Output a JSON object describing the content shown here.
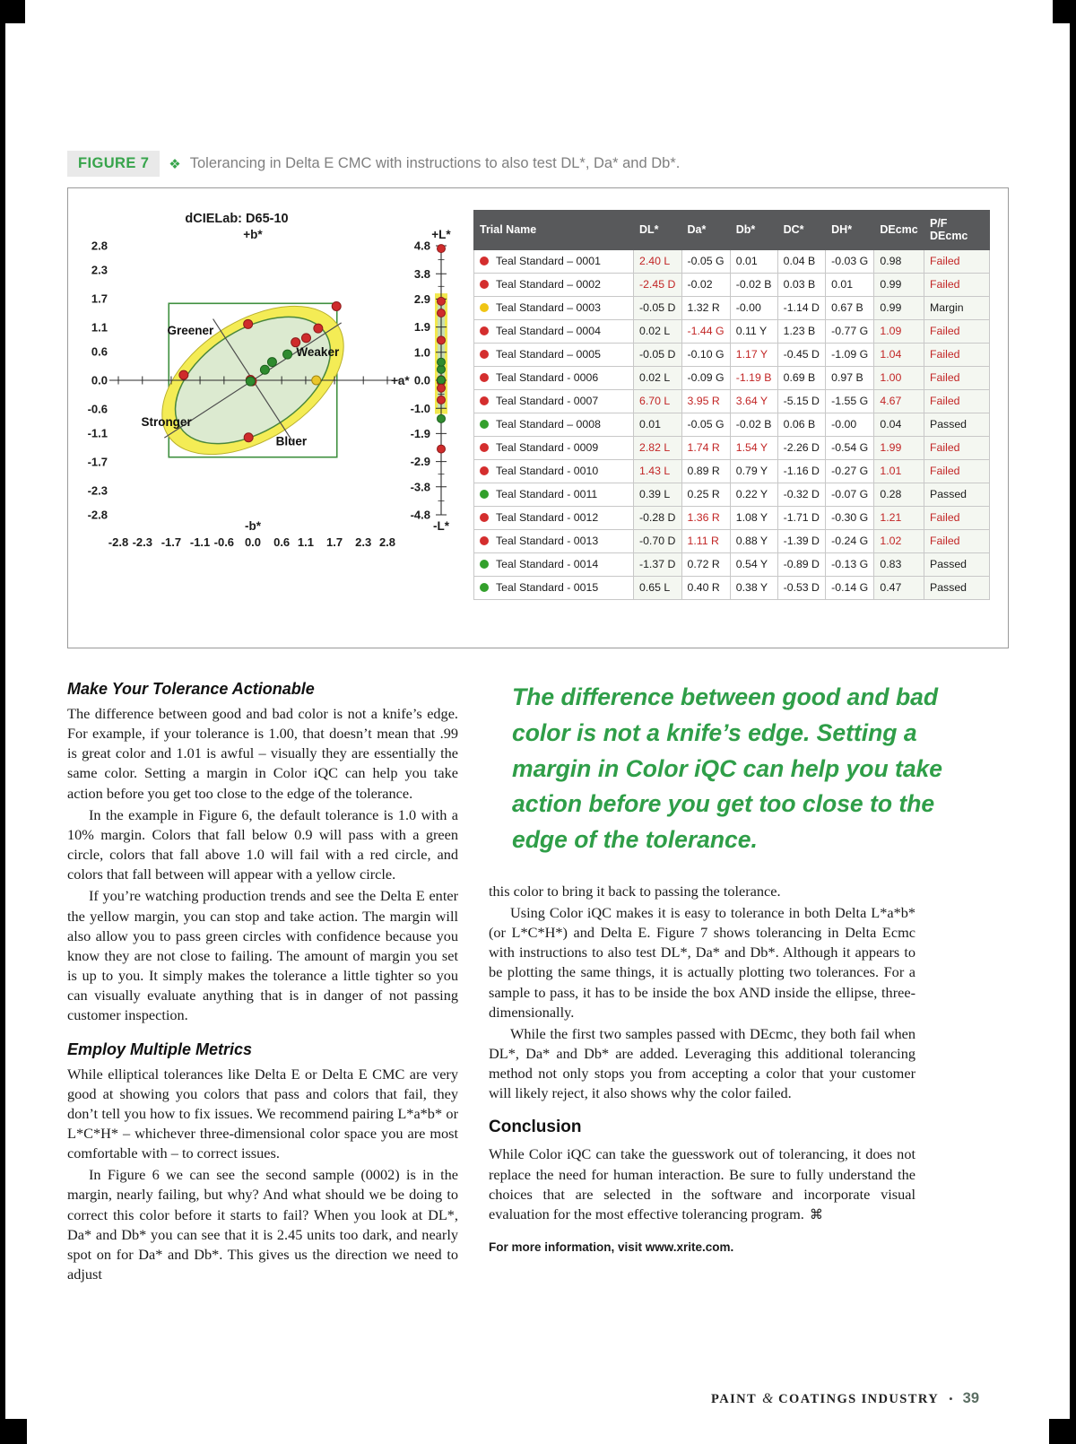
{
  "colors": {
    "accent_green": "#2f9e48",
    "fail_red": "#c22525",
    "pass_green": "#33a02c",
    "margin_yellow": "#f0c514",
    "table_header_gray": "#58595b"
  },
  "figure": {
    "label": "FIGURE 7",
    "icon": "❖",
    "title": "Tolerancing in Delta E CMC with instructions to also test DL*, Da* and Db*."
  },
  "chart_data": {
    "type": "scatter",
    "title": "dCIELab: D65-10",
    "ab_plot": {
      "range": [
        -2.8,
        2.8
      ],
      "ticks": [
        -2.8,
        -2.3,
        -1.7,
        -1.1,
        -0.6,
        0.0,
        0.6,
        1.1,
        1.7,
        2.3,
        2.8
      ],
      "tick_labels": [
        "-2.8",
        "-2.3",
        "-1.7",
        "-1.1",
        "-0.6",
        "0.0",
        "0.6",
        "1.1",
        "1.7",
        "2.3",
        "2.8"
      ],
      "top_label": "+b*",
      "bottom_label": "-b*",
      "right_label": "+a*",
      "tolerance_box": {
        "a_min": -1.75,
        "a_max": 1.75,
        "b_min": -1.6,
        "b_max": 1.6
      },
      "ellipse": {
        "cx": 0,
        "cy": 0,
        "rx": 1.8,
        "ry": 1.05,
        "angle_deg": -33,
        "margin_scale": 1.17
      },
      "annotations": [
        {
          "text": "Greener",
          "a": -1.3,
          "b": 0.95
        },
        {
          "text": "Weaker",
          "a": 1.35,
          "b": 0.5
        },
        {
          "text": "Stronger",
          "a": -1.8,
          "b": -0.95
        },
        {
          "text": "Bluer",
          "a": 0.8,
          "b": -1.35
        }
      ],
      "points": [
        {
          "a": -0.05,
          "b": 0.01,
          "c": "red"
        },
        {
          "a": -0.02,
          "b": -0.02,
          "c": "red"
        },
        {
          "a": 1.32,
          "b": 0.0,
          "c": "yellow"
        },
        {
          "a": -1.44,
          "b": 0.11,
          "c": "red"
        },
        {
          "a": -0.1,
          "b": 1.17,
          "c": "red"
        },
        {
          "a": -0.09,
          "b": -1.19,
          "c": "red"
        },
        {
          "a": 3.95,
          "b": 3.64,
          "c": "red"
        },
        {
          "a": -0.05,
          "b": -0.02,
          "c": "green"
        },
        {
          "a": 1.74,
          "b": 1.54,
          "c": "red"
        },
        {
          "a": 0.89,
          "b": 0.79,
          "c": "red"
        },
        {
          "a": 0.25,
          "b": 0.22,
          "c": "green"
        },
        {
          "a": 1.36,
          "b": 1.08,
          "c": "red"
        },
        {
          "a": 1.11,
          "b": 0.88,
          "c": "red"
        },
        {
          "a": 0.72,
          "b": 0.54,
          "c": "green"
        },
        {
          "a": 0.4,
          "b": 0.38,
          "c": "green"
        }
      ]
    },
    "l_scale": {
      "range": [
        -4.8,
        4.8
      ],
      "ticks": [
        4.8,
        3.8,
        2.9,
        1.9,
        1.0,
        0.0,
        -1.0,
        -1.9,
        -2.9,
        -3.8,
        -4.8
      ],
      "tick_labels": [
        "4.8",
        "3.8",
        "2.9",
        "1.9",
        "1.0",
        "0.0",
        "-1.0",
        "-1.9",
        "-2.9",
        "-3.8",
        "-4.8"
      ],
      "top_label": "+L*",
      "bottom_label": "-L*",
      "margin_band": [
        -1.2,
        3.1
      ],
      "pass_band": [
        -1.0,
        2.8
      ],
      "points": [
        {
          "l": 2.4,
          "c": "red"
        },
        {
          "l": -2.45,
          "c": "red"
        },
        {
          "l": -0.05,
          "c": "yellow"
        },
        {
          "l": 0.02,
          "c": "red"
        },
        {
          "l": -0.05,
          "c": "red"
        },
        {
          "l": 0.02,
          "c": "red"
        },
        {
          "l": 6.7,
          "c": "red"
        },
        {
          "l": 0.01,
          "c": "green"
        },
        {
          "l": 2.82,
          "c": "red"
        },
        {
          "l": 1.43,
          "c": "red"
        },
        {
          "l": 0.39,
          "c": "green"
        },
        {
          "l": -0.28,
          "c": "red"
        },
        {
          "l": -0.7,
          "c": "red"
        },
        {
          "l": -1.37,
          "c": "green"
        },
        {
          "l": 0.65,
          "c": "green"
        }
      ]
    }
  },
  "table": {
    "headers": [
      "Trial Name",
      "DL*",
      "Da*",
      "Db*",
      "DC*",
      "DH*",
      "DEcmc",
      "P/F DEcmc"
    ],
    "rows": [
      {
        "dot": "red",
        "name": "Teal Standard – 0001",
        "cells": [
          "2.40 L",
          "-0.05 G",
          "0.01",
          "0.04 B",
          "-0.03 G",
          "0.98"
        ],
        "red": [
          0
        ],
        "pf": "Failed"
      },
      {
        "dot": "red",
        "name": "Teal Standard – 0002",
        "cells": [
          "-2.45 D",
          "-0.02",
          "-0.02 B",
          "0.03 B",
          "0.01",
          "0.99"
        ],
        "red": [
          0
        ],
        "pf": "Failed"
      },
      {
        "dot": "yellow",
        "name": "Teal Standard – 0003",
        "cells": [
          "-0.05 D",
          "1.32 R",
          "-0.00",
          "-1.14 D",
          "0.67 B",
          "0.99"
        ],
        "red": [],
        "pf": "Margin"
      },
      {
        "dot": "red",
        "name": "Teal Standard – 0004",
        "cells": [
          "0.02 L",
          "-1.44 G",
          "0.11 Y",
          "1.23 B",
          "-0.77 G",
          "1.09"
        ],
        "red": [
          1,
          5
        ],
        "pf": "Failed"
      },
      {
        "dot": "red",
        "name": "Teal Standard – 0005",
        "cells": [
          "-0.05 D",
          "-0.10 G",
          "1.17 Y",
          "-0.45 D",
          "-1.09 G",
          "1.04"
        ],
        "red": [
          2,
          5
        ],
        "pf": "Failed"
      },
      {
        "dot": "red",
        "name": "Teal Standard - 0006",
        "cells": [
          "0.02 L",
          "-0.09 G",
          "-1.19 B",
          "0.69 B",
          "0.97 B",
          "1.00"
        ],
        "red": [
          2,
          5
        ],
        "pf": "Failed"
      },
      {
        "dot": "red",
        "name": "Teal Standard - 0007",
        "cells": [
          "6.70 L",
          "3.95 R",
          "3.64 Y",
          "-5.15 D",
          "-1.55 G",
          "4.67"
        ],
        "red": [
          0,
          1,
          2,
          5
        ],
        "pf": "Failed"
      },
      {
        "dot": "green",
        "name": "Teal Standard – 0008",
        "cells": [
          "0.01",
          "-0.05 G",
          "-0.02 B",
          "0.06 B",
          "-0.00",
          "0.04"
        ],
        "red": [],
        "pf": "Passed"
      },
      {
        "dot": "red",
        "name": "Teal Standard - 0009",
        "cells": [
          "2.82 L",
          "1.74 R",
          "1.54 Y",
          "-2.26 D",
          "-0.54 G",
          "1.99"
        ],
        "red": [
          0,
          1,
          2,
          5
        ],
        "pf": "Failed"
      },
      {
        "dot": "red",
        "name": "Teal Standard - 0010",
        "cells": [
          "1.43 L",
          "0.89 R",
          "0.79 Y",
          "-1.16 D",
          "-0.27 G",
          "1.01"
        ],
        "red": [
          0,
          5
        ],
        "pf": "Failed"
      },
      {
        "dot": "green",
        "name": "Teal Standard - 0011",
        "cells": [
          "0.39 L",
          "0.25 R",
          "0.22 Y",
          "-0.32 D",
          "-0.07 G",
          "0.28"
        ],
        "red": [],
        "pf": "Passed"
      },
      {
        "dot": "red",
        "name": "Teal Standard - 0012",
        "cells": [
          "-0.28 D",
          "1.36 R",
          "1.08 Y",
          "-1.71 D",
          "-0.30 G",
          "1.21"
        ],
        "red": [
          1,
          5
        ],
        "pf": "Failed"
      },
      {
        "dot": "red",
        "name": "Teal Standard - 0013",
        "cells": [
          "-0.70 D",
          "1.11 R",
          "0.88 Y",
          "-1.39 D",
          "-0.24 G",
          "1.02"
        ],
        "red": [
          1,
          5
        ],
        "pf": "Failed"
      },
      {
        "dot": "green",
        "name": "Teal Standard - 0014",
        "cells": [
          "-1.37 D",
          "0.72 R",
          "0.54 Y",
          "-0.89 D",
          "-0.13 G",
          "0.83"
        ],
        "red": [],
        "pf": "Passed"
      },
      {
        "dot": "green",
        "name": "Teal Standard - 0015",
        "cells": [
          "0.65 L",
          "0.40 R",
          "0.38 Y",
          "-0.53 D",
          "-0.14 G",
          "0.47"
        ],
        "red": [],
        "pf": "Passed"
      }
    ]
  },
  "article": {
    "left_heading1": "Make Your Tolerance Actionable",
    "left_p1": "The difference between good and bad color is not a knife’s edge. For example, if your tolerance is 1.00, that doesn’t mean that .99 is great color and 1.01 is awful – visually they are essentially the same color. Setting a margin in Color iQC can help you take action before you get too close to the edge of the tolerance.",
    "left_p2": "In the example in Figure 6, the default tolerance is 1.0 with a 10% margin. Colors that fall below 0.9 will pass with a green circle, colors that fall above 1.0 will fail with a red circle, and colors that fall between will appear with a yellow circle.",
    "left_p3": "If you’re watching production trends and see the Delta E enter the yellow margin, you can stop and take action. The margin will also allow you to pass green circles with confidence because you know they are not close to failing. The amount of margin you set is up to you. It simply makes the tolerance a little tighter so you can visually evaluate anything that is in danger of not passing customer inspection.",
    "left_heading2": "Employ Multiple Metrics",
    "left_p4": "While elliptical tolerances like Delta E or Delta E CMC are very good at showing you colors that pass and colors that fail, they don’t tell you how to fix issues. We recommend pairing L*a*b* or L*C*H* – whichever three-dimensional color space you are most comfortable with – to correct issues.",
    "left_p5": "In Figure 6 we can see the second sample (0002) is in the margin, nearly failing, but why? And what should we be doing to correct this color before it starts to fail? When you look at DL*, Da* and Db* you can see that it is 2.45 units too dark, and nearly spot on for Da* and Db*. This gives us the direction we need to adjust",
    "pullquote": "The difference between good and bad color is not a knife’s edge. Setting a margin in Color iQC can help you take action before you get too close to the edge of the tolerance.",
    "right_p1": "this color to bring it back to passing the tolerance.",
    "right_p2": "Using Color iQC makes it is easy to tolerance in both Delta L*a*b* (or L*C*H*) and Delta E. Figure 7 shows tolerancing in Delta Ecmc with instructions to also test DL*, Da* and Db*. Although it appears to be plotting the same things, it is actually plotting two tolerances. For a sample to pass, it has to be inside the box AND inside the ellipse, three-dimensionally.",
    "right_p3": "While the first two samples passed with DEcmc, they both fail when DL*, Da* and Db* are added. Leveraging this additional tolerancing method not only stops you from accepting a color that your customer will likely reject, it also shows why the color failed.",
    "conclusion_heading": "Conclusion",
    "right_p4": "While Color iQC can take the guesswork out of tolerancing, it does not replace the need for human interaction. Be sure to fully understand the choices that are selected in the software and incorporate visual evaluation for the most effective tolerancing program.",
    "end_mark": "⌘",
    "info_line": "For more information, visit www.xrite.com."
  },
  "footer": {
    "magazine1": "PAINT",
    "amp": "&",
    "magazine2": "COATINGS INDUSTRY",
    "bullet": "•",
    "page_number": "39"
  }
}
